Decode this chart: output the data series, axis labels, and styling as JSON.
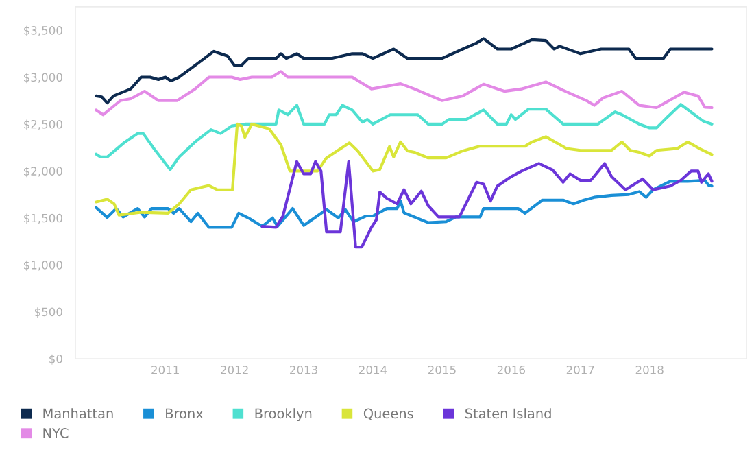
{
  "chart_data": {
    "type": "line",
    "xlim": [
      2009.7,
      2019.4
    ],
    "xticks": [
      2011,
      2012,
      2013,
      2014,
      2015,
      2016,
      2017,
      2018
    ],
    "ylim": [
      0,
      3750
    ],
    "yticks": [
      {
        "value": 0,
        "label": "$0"
      },
      {
        "value": 500,
        "label": "$500"
      },
      {
        "value": 1000,
        "label": "$1,000"
      },
      {
        "value": 1500,
        "label": "$1,500"
      },
      {
        "value": 2000,
        "label": "$2,000"
      },
      {
        "value": 2500,
        "label": "$2,500"
      },
      {
        "value": 3000,
        "label": "$3,000"
      },
      {
        "value": 3500,
        "label": "$3,500"
      }
    ],
    "grid": false,
    "legend": "bottom left",
    "series": [
      {
        "name": "Manhattan",
        "color": "#0d2a4f",
        "x": [
          2010.0,
          2010.08,
          2010.16,
          2010.25,
          2010.5,
          2010.65,
          2010.78,
          2010.9,
          2011.0,
          2011.08,
          2011.2,
          2011.43,
          2011.7,
          2011.9,
          2012.0,
          2012.1,
          2012.2,
          2012.6,
          2012.67,
          2012.75,
          2012.9,
          2013.0,
          2013.4,
          2013.7,
          2013.85,
          2014.0,
          2014.3,
          2014.5,
          2015.0,
          2015.3,
          2015.5,
          2015.6,
          2015.8,
          2016.0,
          2016.3,
          2016.5,
          2016.62,
          2016.7,
          2017.0,
          2017.3,
          2017.7,
          2017.8,
          2018.2,
          2018.3,
          2018.7,
          2018.9
        ],
        "values": [
          2800,
          2790,
          2725,
          2800,
          2875,
          3000,
          3000,
          2975,
          3000,
          2960,
          3000,
          3125,
          3275,
          3225,
          3125,
          3125,
          3200,
          3200,
          3250,
          3200,
          3250,
          3200,
          3200,
          3250,
          3250,
          3200,
          3300,
          3200,
          3200,
          3300,
          3365,
          3410,
          3300,
          3300,
          3400,
          3390,
          3300,
          3330,
          3250,
          3300,
          3300,
          3200,
          3200,
          3300,
          3300,
          3300
        ]
      },
      {
        "name": "Bronx",
        "color": "#1a8fd6",
        "x": [
          2010.0,
          2010.16,
          2010.29,
          2010.39,
          2010.6,
          2010.7,
          2010.8,
          2011.04,
          2011.12,
          2011.2,
          2011.37,
          2011.47,
          2011.63,
          2011.96,
          2012.06,
          2012.2,
          2012.4,
          2012.55,
          2012.62,
          2012.84,
          2013.0,
          2013.33,
          2013.5,
          2013.6,
          2013.72,
          2013.9,
          2014.0,
          2014.2,
          2014.35,
          2014.4,
          2014.45,
          2014.8,
          2015.06,
          2015.2,
          2015.55,
          2015.6,
          2016.1,
          2016.2,
          2016.45,
          2016.75,
          2016.9,
          2017.05,
          2017.2,
          2017.45,
          2017.7,
          2017.85,
          2017.95,
          2018.05,
          2018.3,
          2018.55,
          2018.8,
          2018.85,
          2018.9
        ],
        "values": [
          1610,
          1505,
          1600,
          1510,
          1600,
          1510,
          1600,
          1600,
          1550,
          1600,
          1460,
          1550,
          1400,
          1400,
          1550,
          1500,
          1410,
          1500,
          1410,
          1600,
          1420,
          1590,
          1500,
          1590,
          1460,
          1520,
          1520,
          1600,
          1600,
          1680,
          1555,
          1450,
          1460,
          1510,
          1510,
          1600,
          1600,
          1550,
          1690,
          1690,
          1650,
          1690,
          1720,
          1740,
          1750,
          1780,
          1720,
          1800,
          1890,
          1890,
          1900,
          1850,
          1840
        ]
      },
      {
        "name": "Brooklyn",
        "color": "#4fe0d0",
        "x": [
          2010.0,
          2010.06,
          2010.16,
          2010.4,
          2010.6,
          2010.68,
          2010.84,
          2011.07,
          2011.2,
          2011.43,
          2011.66,
          2011.8,
          2011.96,
          2012.15,
          2012.6,
          2012.64,
          2012.77,
          2012.9,
          2013.0,
          2013.3,
          2013.37,
          2013.47,
          2013.56,
          2013.7,
          2013.85,
          2013.92,
          2014.0,
          2014.25,
          2014.65,
          2014.8,
          2015.0,
          2015.1,
          2015.35,
          2015.6,
          2015.8,
          2015.93,
          2016.0,
          2016.06,
          2016.25,
          2016.5,
          2016.75,
          2017.25,
          2017.5,
          2017.6,
          2017.85,
          2018.0,
          2018.1,
          2018.25,
          2018.45,
          2018.65,
          2018.78,
          2018.9
        ],
        "values": [
          2180,
          2150,
          2150,
          2300,
          2400,
          2400,
          2235,
          2015,
          2150,
          2310,
          2440,
          2400,
          2480,
          2500,
          2500,
          2650,
          2600,
          2700,
          2500,
          2500,
          2600,
          2600,
          2700,
          2650,
          2520,
          2550,
          2500,
          2600,
          2600,
          2500,
          2500,
          2550,
          2550,
          2650,
          2500,
          2500,
          2600,
          2550,
          2660,
          2660,
          2500,
          2500,
          2630,
          2600,
          2500,
          2460,
          2460,
          2570,
          2710,
          2600,
          2530,
          2500
        ]
      },
      {
        "name": "Queens",
        "color": "#d9e53a",
        "x": [
          2010.0,
          2010.16,
          2010.26,
          2010.33,
          2010.65,
          2011.04,
          2011.2,
          2011.37,
          2011.63,
          2011.75,
          2011.97,
          2012.04,
          2012.1,
          2012.15,
          2012.25,
          2012.5,
          2012.67,
          2012.8,
          2013.2,
          2013.33,
          2013.66,
          2013.78,
          2014.0,
          2014.1,
          2014.24,
          2014.3,
          2014.4,
          2014.5,
          2014.6,
          2014.8,
          2015.06,
          2015.3,
          2015.55,
          2016.2,
          2016.3,
          2016.5,
          2016.8,
          2017.0,
          2017.45,
          2017.6,
          2017.72,
          2017.85,
          2018.0,
          2018.1,
          2018.4,
          2018.55,
          2018.72,
          2018.9
        ],
        "values": [
          1670,
          1700,
          1650,
          1530,
          1560,
          1550,
          1650,
          1800,
          1845,
          1800,
          1800,
          2500,
          2480,
          2360,
          2500,
          2450,
          2280,
          2000,
          2000,
          2140,
          2300,
          2215,
          2000,
          2015,
          2260,
          2150,
          2310,
          2215,
          2200,
          2140,
          2140,
          2215,
          2265,
          2265,
          2310,
          2365,
          2240,
          2220,
          2220,
          2310,
          2220,
          2200,
          2160,
          2220,
          2240,
          2310,
          2240,
          2175
        ]
      },
      {
        "name": "Staten Island",
        "color": "#6b35d9",
        "x": [
          2012.4,
          2012.6,
          2012.7,
          2012.9,
          2013.0,
          2013.1,
          2013.17,
          2013.25,
          2013.33,
          2013.53,
          2013.65,
          2013.75,
          2013.84,
          2013.98,
          2014.05,
          2014.1,
          2014.2,
          2014.35,
          2014.45,
          2014.55,
          2014.7,
          2014.8,
          2014.95,
          2015.25,
          2015.5,
          2015.6,
          2015.7,
          2015.8,
          2016.0,
          2016.15,
          2016.4,
          2016.6,
          2016.75,
          2016.85,
          2017.0,
          2017.15,
          2017.35,
          2017.45,
          2017.65,
          2017.9,
          2018.05,
          2018.3,
          2018.45,
          2018.6,
          2018.7,
          2018.75,
          2018.85,
          2018.9
        ],
        "values": [
          1410,
          1400,
          1520,
          2100,
          1970,
          1970,
          2100,
          2000,
          1350,
          1350,
          2100,
          1190,
          1190,
          1400,
          1480,
          1775,
          1710,
          1650,
          1800,
          1650,
          1785,
          1630,
          1510,
          1510,
          1880,
          1860,
          1680,
          1840,
          1940,
          2000,
          2080,
          2010,
          1880,
          1970,
          1900,
          1900,
          2080,
          1940,
          1800,
          1915,
          1800,
          1840,
          1900,
          2000,
          2000,
          1880,
          1970,
          1890
        ]
      },
      {
        "name": "NYC",
        "color": "#e38ae6",
        "x": [
          2010.0,
          2010.1,
          2010.35,
          2010.5,
          2010.7,
          2010.9,
          2011.17,
          2011.43,
          2011.63,
          2011.96,
          2012.08,
          2012.25,
          2012.54,
          2012.67,
          2012.77,
          2013.7,
          2013.98,
          2014.4,
          2014.6,
          2015.0,
          2015.3,
          2015.6,
          2015.9,
          2016.15,
          2016.5,
          2016.75,
          2017.1,
          2017.2,
          2017.33,
          2017.6,
          2017.85,
          2018.1,
          2018.5,
          2018.7,
          2018.8,
          2018.9
        ],
        "values": [
          2650,
          2600,
          2750,
          2770,
          2850,
          2750,
          2750,
          2875,
          3000,
          3000,
          2975,
          3000,
          3000,
          3060,
          3000,
          3000,
          2875,
          2930,
          2875,
          2750,
          2800,
          2925,
          2850,
          2875,
          2950,
          2860,
          2745,
          2700,
          2780,
          2850,
          2700,
          2675,
          2840,
          2800,
          2680,
          2675
        ]
      }
    ]
  }
}
